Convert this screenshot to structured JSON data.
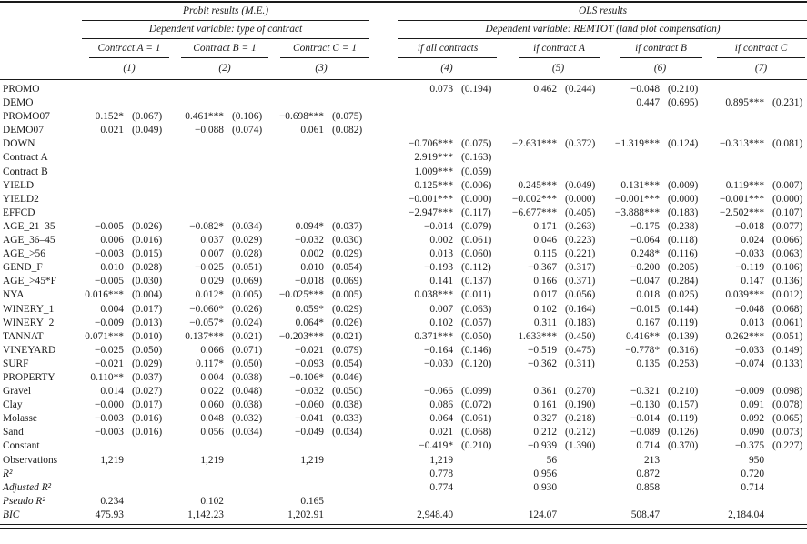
{
  "page": {
    "background": "#ffffff",
    "text_color": "#1a1a1a",
    "rule_color": "#000000"
  },
  "table": {
    "groups": [
      {
        "label": "Probit results (M.E.)",
        "dep_var": "Dependent variable: type of contract"
      },
      {
        "label": "OLS results",
        "dep_var": "Dependent variable: REMTOT (land plot compensation)"
      }
    ],
    "columns": [
      {
        "header": "Contract A = 1",
        "number": "(1)"
      },
      {
        "header": "Contract B = 1",
        "number": "(2)"
      },
      {
        "header": "Contract C = 1",
        "number": "(3)"
      },
      {
        "header": "if all contracts",
        "number": "(4)"
      },
      {
        "header": "if contract A",
        "number": "(5)"
      },
      {
        "header": "if contract B",
        "number": "(6)"
      },
      {
        "header": "if contract C",
        "number": "(7)"
      }
    ],
    "rows": [
      {
        "label": "PROMO",
        "italic": false,
        "cells": [
          [
            "",
            ""
          ],
          [
            "",
            ""
          ],
          [
            "",
            ""
          ],
          [
            "0.073",
            "(0.194)"
          ],
          [
            "0.462",
            "(0.244)"
          ],
          [
            "−0.048",
            "(0.210)"
          ],
          [
            "",
            ""
          ]
        ]
      },
      {
        "label": "DEMO",
        "italic": false,
        "cells": [
          [
            "",
            ""
          ],
          [
            "",
            ""
          ],
          [
            "",
            ""
          ],
          [
            "",
            ""
          ],
          [
            "",
            ""
          ],
          [
            "0.447",
            "(0.695)"
          ],
          [
            "0.895***",
            "(0.231)"
          ]
        ]
      },
      {
        "label": "PROMO07",
        "italic": false,
        "cells": [
          [
            "0.152*",
            "(0.067)"
          ],
          [
            "0.461***",
            "(0.106)"
          ],
          [
            "−0.698***",
            "(0.075)"
          ],
          [
            "",
            ""
          ],
          [
            "",
            ""
          ],
          [
            "",
            ""
          ],
          [
            "",
            ""
          ]
        ]
      },
      {
        "label": "DEMO07",
        "italic": false,
        "cells": [
          [
            "0.021",
            "(0.049)"
          ],
          [
            "−0.088",
            "(0.074)"
          ],
          [
            "0.061",
            "(0.082)"
          ],
          [
            "",
            ""
          ],
          [
            "",
            ""
          ],
          [
            "",
            ""
          ],
          [
            "",
            ""
          ]
        ]
      },
      {
        "label": "DOWN",
        "italic": false,
        "cells": [
          [
            "",
            ""
          ],
          [
            "",
            ""
          ],
          [
            "",
            ""
          ],
          [
            "−0.706***",
            "(0.075)"
          ],
          [
            "−2.631***",
            "(0.372)"
          ],
          [
            "−1.319***",
            "(0.124)"
          ],
          [
            "−0.313***",
            "(0.081)"
          ]
        ]
      },
      {
        "label": "Contract A",
        "italic": false,
        "cells": [
          [
            "",
            ""
          ],
          [
            "",
            ""
          ],
          [
            "",
            ""
          ],
          [
            "2.919***",
            "(0.163)"
          ],
          [
            "",
            ""
          ],
          [
            "",
            ""
          ],
          [
            "",
            ""
          ]
        ]
      },
      {
        "label": "Contract B",
        "italic": false,
        "cells": [
          [
            "",
            ""
          ],
          [
            "",
            ""
          ],
          [
            "",
            ""
          ],
          [
            "1.009***",
            "(0.059)"
          ],
          [
            "",
            ""
          ],
          [
            "",
            ""
          ],
          [
            "",
            ""
          ]
        ]
      },
      {
        "label": "YIELD",
        "italic": false,
        "cells": [
          [
            "",
            ""
          ],
          [
            "",
            ""
          ],
          [
            "",
            ""
          ],
          [
            "0.125***",
            "(0.006)"
          ],
          [
            "0.245***",
            "(0.049)"
          ],
          [
            "0.131***",
            "(0.009)"
          ],
          [
            "0.119***",
            "(0.007)"
          ]
        ]
      },
      {
        "label": "YIELD2",
        "italic": false,
        "cells": [
          [
            "",
            ""
          ],
          [
            "",
            ""
          ],
          [
            "",
            ""
          ],
          [
            "−0.001***",
            "(0.000)"
          ],
          [
            "−0.002***",
            "(0.000)"
          ],
          [
            "−0.001***",
            "(0.000)"
          ],
          [
            "−0.001***",
            "(0.000)"
          ]
        ]
      },
      {
        "label": "EFFCD",
        "italic": false,
        "cells": [
          [
            "",
            ""
          ],
          [
            "",
            ""
          ],
          [
            "",
            ""
          ],
          [
            "−2.947***",
            "(0.117)"
          ],
          [
            "−6.677***",
            "(0.405)"
          ],
          [
            "−3.888***",
            "(0.183)"
          ],
          [
            "−2.502***",
            "(0.107)"
          ]
        ]
      },
      {
        "label": "AGE_21–35",
        "italic": false,
        "cells": [
          [
            "−0.005",
            "(0.026)"
          ],
          [
            "−0.082*",
            "(0.034)"
          ],
          [
            "0.094*",
            "(0.037)"
          ],
          [
            "−0.014",
            "(0.079)"
          ],
          [
            "0.171",
            "(0.263)"
          ],
          [
            "−0.175",
            "(0.238)"
          ],
          [
            "−0.018",
            "(0.077)"
          ]
        ]
      },
      {
        "label": "AGE_36–45",
        "italic": false,
        "cells": [
          [
            "0.006",
            "(0.016)"
          ],
          [
            "0.037",
            "(0.029)"
          ],
          [
            "−0.032",
            "(0.030)"
          ],
          [
            "0.002",
            "(0.061)"
          ],
          [
            "0.046",
            "(0.223)"
          ],
          [
            "−0.064",
            "(0.118)"
          ],
          [
            "0.024",
            "(0.066)"
          ]
        ]
      },
      {
        "label": "AGE_>56",
        "italic": false,
        "cells": [
          [
            "−0.003",
            "(0.015)"
          ],
          [
            "0.007",
            "(0.028)"
          ],
          [
            "0.002",
            "(0.029)"
          ],
          [
            "0.013",
            "(0.060)"
          ],
          [
            "0.115",
            "(0.221)"
          ],
          [
            "0.248*",
            "(0.116)"
          ],
          [
            "−0.033",
            "(0.063)"
          ]
        ]
      },
      {
        "label": "GEND_F",
        "italic": false,
        "cells": [
          [
            "0.010",
            "(0.028)"
          ],
          [
            "−0.025",
            "(0.051)"
          ],
          [
            "0.010",
            "(0.054)"
          ],
          [
            "−0.193",
            "(0.112)"
          ],
          [
            "−0.367",
            "(0.317)"
          ],
          [
            "−0.200",
            "(0.205)"
          ],
          [
            "−0.119",
            "(0.106)"
          ]
        ]
      },
      {
        "label": "AGE_>45*F",
        "italic": false,
        "cells": [
          [
            "−0.005",
            "(0.030)"
          ],
          [
            "0.029",
            "(0.069)"
          ],
          [
            "−0.018",
            "(0.069)"
          ],
          [
            "0.141",
            "(0.137)"
          ],
          [
            "0.166",
            "(0.371)"
          ],
          [
            "−0.047",
            "(0.284)"
          ],
          [
            "0.147",
            "(0.136)"
          ]
        ]
      },
      {
        "label": "NYA",
        "italic": false,
        "cells": [
          [
            "0.016***",
            "(0.004)"
          ],
          [
            "0.012*",
            "(0.005)"
          ],
          [
            "−0.025***",
            "(0.005)"
          ],
          [
            "0.038***",
            "(0.011)"
          ],
          [
            "0.017",
            "(0.056)"
          ],
          [
            "0.018",
            "(0.025)"
          ],
          [
            "0.039***",
            "(0.012)"
          ]
        ]
      },
      {
        "label": "WINERY_1",
        "italic": false,
        "cells": [
          [
            "0.004",
            "(0.017)"
          ],
          [
            "−0.060*",
            "(0.026)"
          ],
          [
            "0.059*",
            "(0.029)"
          ],
          [
            "0.007",
            "(0.063)"
          ],
          [
            "0.102",
            "(0.164)"
          ],
          [
            "−0.015",
            "(0.144)"
          ],
          [
            "−0.048",
            "(0.068)"
          ]
        ]
      },
      {
        "label": "WINERY_2",
        "italic": false,
        "cells": [
          [
            "−0.009",
            "(0.013)"
          ],
          [
            "−0.057*",
            "(0.024)"
          ],
          [
            "0.064*",
            "(0.026)"
          ],
          [
            "0.102",
            "(0.057)"
          ],
          [
            "0.311",
            "(0.183)"
          ],
          [
            "0.167",
            "(0.119)"
          ],
          [
            "0.013",
            "(0.061)"
          ]
        ]
      },
      {
        "label": "TANNAT",
        "italic": false,
        "cells": [
          [
            "0.071***",
            "(0.010)"
          ],
          [
            "0.137***",
            "(0.021)"
          ],
          [
            "−0.203***",
            "(0.021)"
          ],
          [
            "0.371***",
            "(0.050)"
          ],
          [
            "1.633***",
            "(0.450)"
          ],
          [
            "0.416**",
            "(0.139)"
          ],
          [
            "0.262***",
            "(0.051)"
          ]
        ]
      },
      {
        "label": "VINEYARD",
        "italic": false,
        "cells": [
          [
            "−0.025",
            "(0.050)"
          ],
          [
            "0.066",
            "(0.071)"
          ],
          [
            "−0.021",
            "(0.079)"
          ],
          [
            "−0.164",
            "(0.146)"
          ],
          [
            "−0.519",
            "(0.475)"
          ],
          [
            "−0.778*",
            "(0.316)"
          ],
          [
            "−0.033",
            "(0.149)"
          ]
        ]
      },
      {
        "label": "SURF",
        "italic": false,
        "cells": [
          [
            "−0.021",
            "(0.029)"
          ],
          [
            "0.117*",
            "(0.050)"
          ],
          [
            "−0.093",
            "(0.054)"
          ],
          [
            "−0.030",
            "(0.120)"
          ],
          [
            "−0.362",
            "(0.311)"
          ],
          [
            "0.135",
            "(0.253)"
          ],
          [
            "−0.074",
            "(0.133)"
          ]
        ]
      },
      {
        "label": "PROPERTY",
        "italic": false,
        "cells": [
          [
            "0.110**",
            "(0.037)"
          ],
          [
            "0.004",
            "(0.038)"
          ],
          [
            "−0.106*",
            "(0.046)"
          ],
          [
            "",
            ""
          ],
          [
            "",
            ""
          ],
          [
            "",
            ""
          ],
          [
            "",
            ""
          ]
        ]
      },
      {
        "label": "Gravel",
        "italic": false,
        "cells": [
          [
            "0.014",
            "(0.027)"
          ],
          [
            "0.022",
            "(0.048)"
          ],
          [
            "−0.032",
            "(0.050)"
          ],
          [
            "−0.066",
            "(0.099)"
          ],
          [
            "0.361",
            "(0.270)"
          ],
          [
            "−0.321",
            "(0.210)"
          ],
          [
            "−0.009",
            "(0.098)"
          ]
        ]
      },
      {
        "label": "Clay",
        "italic": false,
        "cells": [
          [
            "−0.000",
            "(0.017)"
          ],
          [
            "0.060",
            "(0.038)"
          ],
          [
            "−0.060",
            "(0.038)"
          ],
          [
            "0.086",
            "(0.072)"
          ],
          [
            "0.161",
            "(0.190)"
          ],
          [
            "−0.130",
            "(0.157)"
          ],
          [
            "0.091",
            "(0.078)"
          ]
        ]
      },
      {
        "label": "Molasse",
        "italic": false,
        "cells": [
          [
            "−0.003",
            "(0.016)"
          ],
          [
            "0.048",
            "(0.032)"
          ],
          [
            "−0.041",
            "(0.033)"
          ],
          [
            "0.064",
            "(0.061)"
          ],
          [
            "0.327",
            "(0.218)"
          ],
          [
            "−0.014",
            "(0.119)"
          ],
          [
            "0.092",
            "(0.065)"
          ]
        ]
      },
      {
        "label": "Sand",
        "italic": false,
        "cells": [
          [
            "−0.003",
            "(0.016)"
          ],
          [
            "0.056",
            "(0.034)"
          ],
          [
            "−0.049",
            "(0.034)"
          ],
          [
            "0.021",
            "(0.068)"
          ],
          [
            "0.212",
            "(0.212)"
          ],
          [
            "−0.089",
            "(0.126)"
          ],
          [
            "0.090",
            "(0.073)"
          ]
        ]
      },
      {
        "label": "Constant",
        "italic": false,
        "cells": [
          [
            "",
            ""
          ],
          [
            "",
            ""
          ],
          [
            "",
            ""
          ],
          [
            "−0.419*",
            "(0.210)"
          ],
          [
            "−0.939",
            "(1.390)"
          ],
          [
            "0.714",
            "(0.370)"
          ],
          [
            "−0.375",
            "(0.227)"
          ]
        ]
      },
      {
        "label": "Observations",
        "italic": false,
        "cells": [
          [
            "1,219",
            ""
          ],
          [
            "1,219",
            ""
          ],
          [
            "1,219",
            ""
          ],
          [
            "1,219",
            ""
          ],
          [
            "56",
            ""
          ],
          [
            "213",
            ""
          ],
          [
            "950",
            ""
          ]
        ]
      },
      {
        "label": "R²",
        "italic": true,
        "cells": [
          [
            "",
            ""
          ],
          [
            "",
            ""
          ],
          [
            "",
            ""
          ],
          [
            "0.778",
            ""
          ],
          [
            "0.956",
            ""
          ],
          [
            "0.872",
            ""
          ],
          [
            "0.720",
            ""
          ]
        ]
      },
      {
        "label": "Adjusted R²",
        "italic": true,
        "cells": [
          [
            "",
            ""
          ],
          [
            "",
            ""
          ],
          [
            "",
            ""
          ],
          [
            "0.774",
            ""
          ],
          [
            "0.930",
            ""
          ],
          [
            "0.858",
            ""
          ],
          [
            "0.714",
            ""
          ]
        ]
      },
      {
        "label": "Pseudo R²",
        "italic": true,
        "cells": [
          [
            "0.234",
            ""
          ],
          [
            "0.102",
            ""
          ],
          [
            "0.165",
            ""
          ],
          [
            "",
            ""
          ],
          [
            "",
            ""
          ],
          [
            "",
            ""
          ],
          [
            "",
            ""
          ]
        ]
      },
      {
        "label": "BIC",
        "italic": true,
        "cells": [
          [
            "475.93",
            ""
          ],
          [
            "1,142.23",
            ""
          ],
          [
            "1,202.91",
            ""
          ],
          [
            "2,948.40",
            ""
          ],
          [
            "124.07",
            ""
          ],
          [
            "508.47",
            ""
          ],
          [
            "2,184.04",
            ""
          ]
        ]
      }
    ]
  }
}
